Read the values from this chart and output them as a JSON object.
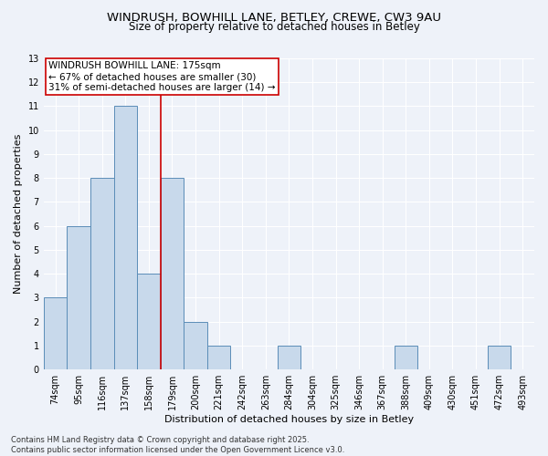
{
  "title_line1": "WINDRUSH, BOWHILL LANE, BETLEY, CREWE, CW3 9AU",
  "title_line2": "Size of property relative to detached houses in Betley",
  "xlabel": "Distribution of detached houses by size in Betley",
  "ylabel": "Number of detached properties",
  "footer_line1": "Contains HM Land Registry data © Crown copyright and database right 2025.",
  "footer_line2": "Contains public sector information licensed under the Open Government Licence v3.0.",
  "categories": [
    "74sqm",
    "95sqm",
    "116sqm",
    "137sqm",
    "158sqm",
    "179sqm",
    "200sqm",
    "221sqm",
    "242sqm",
    "263sqm",
    "284sqm",
    "304sqm",
    "325sqm",
    "346sqm",
    "367sqm",
    "388sqm",
    "409sqm",
    "430sqm",
    "451sqm",
    "472sqm",
    "493sqm"
  ],
  "values": [
    3,
    6,
    8,
    11,
    4,
    8,
    2,
    1,
    0,
    0,
    1,
    0,
    0,
    0,
    0,
    1,
    0,
    0,
    0,
    1,
    0
  ],
  "bar_color": "#c8d9eb",
  "bar_edge_color": "#5b8db8",
  "reference_line_x": 4.5,
  "reference_line_label": "WINDRUSH BOWHILL LANE: 175sqm",
  "annotation_smaller": "← 67% of detached houses are smaller (30)",
  "annotation_larger": "31% of semi-detached houses are larger (14) →",
  "box_color": "#ffffff",
  "box_edge_color": "#cc0000",
  "ref_line_color": "#cc0000",
  "ylim": [
    0,
    13
  ],
  "yticks": [
    0,
    1,
    2,
    3,
    4,
    5,
    6,
    7,
    8,
    9,
    10,
    11,
    12,
    13
  ],
  "background_color": "#eef2f9",
  "grid_color": "#ffffff",
  "title_fontsize": 9.5,
  "subtitle_fontsize": 8.5,
  "axis_label_fontsize": 8,
  "tick_fontsize": 7,
  "annotation_fontsize": 7.5,
  "footer_fontsize": 6
}
